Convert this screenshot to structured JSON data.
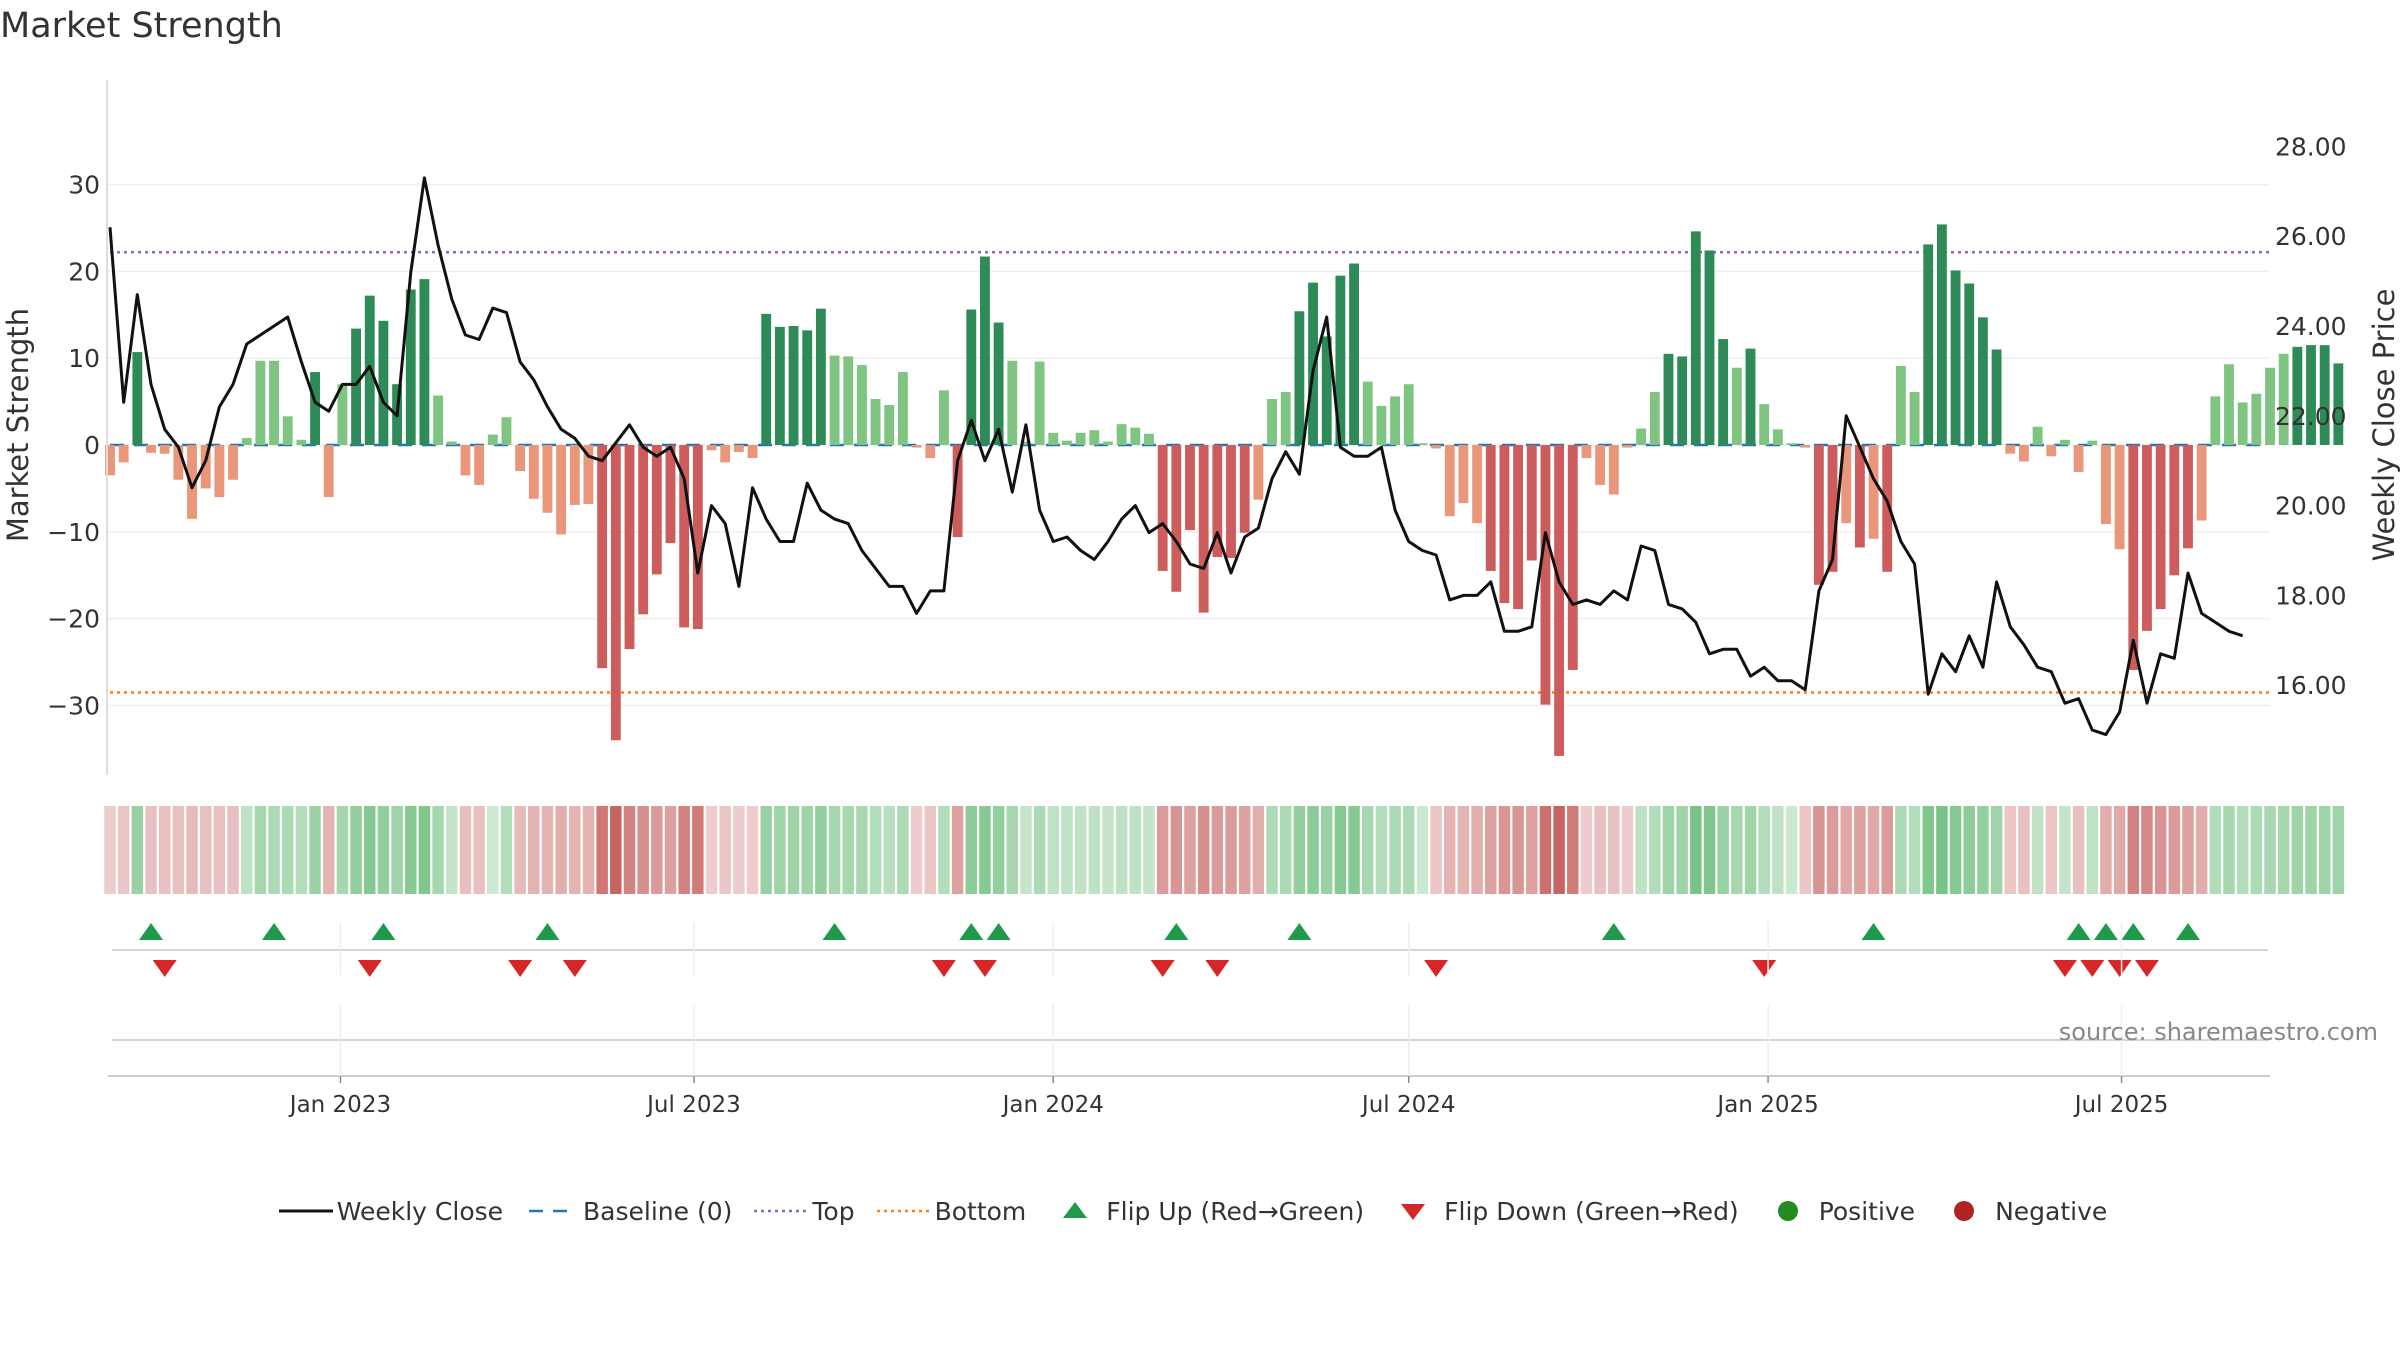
{
  "title": "Market Strength",
  "source": "source: sharemaestro.com",
  "colors": {
    "price_line": "#111111",
    "baseline": "#1f77b4",
    "top": "#9467bd",
    "bottom": "#ff7f0e",
    "pos_strong": "#2e8b57",
    "pos_light": "#7fc481",
    "neg_strong": "#cd5c5c",
    "neg_light": "#e9967a",
    "flip_up": "#1e9a4a",
    "flip_down": "#d62728",
    "positive_dot": "#228b22",
    "negative_dot": "#b22222"
  },
  "chart_data": {
    "type": "bar",
    "title": "Market Strength",
    "ylabel": "Market Strength",
    "y2label": "Weekly Close Price",
    "ylim": [
      -38,
      38
    ],
    "y2lim": [
      14.0,
      28.7
    ],
    "yticks": [
      30,
      20,
      10,
      0,
      -10,
      -20,
      -30
    ],
    "y2ticks": [
      "28.00",
      "26.00",
      "24.00",
      "22.00",
      "20.00",
      "18.00",
      "16.00"
    ],
    "top_level": 22.2,
    "bottom_level": -28.5,
    "baseline_level": 0,
    "xlim": [
      "2022-09-05",
      "2025-09-15"
    ],
    "xtick_dates": [
      "2023-01-01",
      "2023-07-01",
      "2024-01-01",
      "2024-07-01",
      "2025-01-01",
      "2025-07-01"
    ],
    "xticks": [
      "Jan 2023",
      "Jul 2023",
      "Jan 2024",
      "Jul 2024",
      "Jan 2025",
      "Jul 2025"
    ],
    "start_week": "2022-09-05",
    "strength": [
      -3.5,
      -2,
      10.7,
      -0.9,
      -1,
      -4,
      -8.5,
      -5,
      -6,
      -4,
      0.8,
      9.7,
      9.7,
      3.3,
      0.6,
      8.4,
      -6,
      7,
      13.4,
      17.2,
      14.3,
      7,
      17.9,
      19.1,
      5.7,
      0.4,
      -3.5,
      -4.6,
      1.2,
      3.2,
      -3,
      -6.2,
      -7.8,
      -10.3,
      -6.9,
      -6.8,
      -25.7,
      -34,
      -23.5,
      -19.5,
      -14.9,
      -11.3,
      -21,
      -21.2,
      -0.6,
      -2,
      -0.8,
      -1.5,
      15.1,
      13.6,
      13.7,
      13.2,
      15.7,
      10.3,
      10.2,
      9.2,
      5.3,
      4.6,
      8.4,
      -0.3,
      -1.5,
      6.3,
      -10.6,
      15.6,
      21.7,
      14.1,
      9.7,
      0.4,
      9.6,
      1.4,
      0.5,
      1.4,
      1.7,
      0.4,
      2.4,
      2,
      1.3,
      -14.5,
      -16.9,
      -9.8,
      -19.3,
      -12.9,
      -13,
      -10.1,
      -6.3,
      5.3,
      6.1,
      15.4,
      18.7,
      12.5,
      19.5,
      20.9,
      7.3,
      4.5,
      5.6,
      7,
      0.2,
      -0.4,
      -8.2,
      -6.7,
      -9,
      -14.5,
      -18.2,
      -18.9,
      -13.3,
      -29.9,
      -35.8,
      -25.9,
      -1.5,
      -4.6,
      -5.7,
      -0.3,
      1.9,
      6.1,
      10.5,
      10.2,
      24.6,
      22.4,
      12.2,
      8.9,
      11.1,
      4.7,
      1.8,
      0.2,
      -0.3,
      -16.1,
      -14.6,
      -9,
      -11.8,
      -10.8,
      -14.6,
      9.1,
      6.1,
      23.1,
      25.4,
      20.1,
      18.6,
      14.7,
      11,
      -1,
      -1.9,
      2.1,
      -1.3,
      0.6,
      -3.1,
      0.5,
      -9.1,
      -12,
      -25.9,
      -21.4,
      -18.9,
      -15,
      -11.9,
      -8.7,
      5.6,
      9.3,
      4.9,
      5.9,
      8.9,
      10.5,
      11.3,
      11.5,
      11.5,
      9.4
    ],
    "close": [
      26.2,
      22.3,
      24.7,
      22.7,
      21.7,
      21.3,
      20.4,
      21.0,
      22.2,
      22.7,
      23.6,
      23.8,
      24.0,
      24.2,
      23.2,
      22.3,
      22.1,
      22.7,
      22.7,
      23.1,
      22.3,
      22.0,
      25.2,
      27.3,
      25.8,
      24.6,
      23.8,
      23.7,
      24.4,
      24.3,
      23.2,
      22.8,
      22.2,
      21.7,
      21.5,
      21.1,
      21.0,
      21.4,
      21.8,
      21.3,
      21.1,
      21.3,
      20.6,
      18.5,
      20.0,
      19.6,
      18.2,
      20.4,
      19.7,
      19.2,
      19.2,
      20.5,
      19.9,
      19.7,
      19.6,
      19.0,
      18.6,
      18.2,
      18.2,
      17.6,
      18.1,
      18.1,
      21.0,
      21.9,
      21.0,
      21.7,
      20.3,
      21.8,
      19.9,
      19.2,
      19.3,
      19.0,
      18.8,
      19.2,
      19.7,
      20.0,
      19.4,
      19.6,
      19.2,
      18.7,
      18.6,
      19.4,
      18.5,
      19.3,
      19.5,
      20.6,
      21.2,
      20.7,
      23.0,
      24.2,
      21.3,
      21.1,
      21.1,
      21.3,
      19.9,
      19.2,
      19.0,
      18.9,
      17.9,
      18.0,
      18.0,
      18.3,
      17.2,
      17.2,
      17.3,
      19.4,
      18.3,
      17.8,
      17.9,
      17.8,
      18.1,
      17.9,
      19.1,
      19.0,
      17.8,
      17.7,
      17.4,
      16.7,
      16.8,
      16.8,
      16.2,
      16.4,
      16.1,
      16.1,
      15.9,
      18.1,
      18.8,
      22.0,
      21.3,
      20.6,
      20.1,
      19.2,
      18.7,
      15.8,
      16.7,
      16.3,
      17.1,
      16.4,
      18.3,
      17.3,
      16.9,
      16.4,
      16.3,
      15.6,
      15.7,
      15.0,
      14.9,
      15.4,
      17.0,
      15.6,
      16.7,
      16.6,
      18.5,
      17.6,
      17.4,
      17.2,
      17.1
    ],
    "intensity": [
      0.1,
      0.15,
      0.5,
      0.2,
      0.2,
      0.2,
      0.25,
      0.2,
      0.2,
      0.2,
      0.2,
      0.4,
      0.35,
      0.35,
      0.3,
      0.5,
      0.3,
      0.4,
      0.55,
      0.65,
      0.55,
      0.45,
      0.65,
      0.7,
      0.4,
      0.15,
      0.2,
      0.2,
      0.1,
      0.3,
      0.25,
      0.3,
      0.3,
      0.35,
      0.3,
      0.3,
      0.8,
      0.95,
      0.7,
      0.6,
      0.5,
      0.45,
      0.7,
      0.75,
      0.1,
      0.15,
      0.1,
      0.1,
      0.5,
      0.45,
      0.45,
      0.45,
      0.55,
      0.4,
      0.4,
      0.4,
      0.3,
      0.25,
      0.35,
      0.1,
      0.15,
      0.3,
      0.45,
      0.6,
      0.65,
      0.55,
      0.4,
      0.15,
      0.35,
      0.2,
      0.2,
      0.2,
      0.2,
      0.15,
      0.2,
      0.2,
      0.15,
      0.5,
      0.55,
      0.45,
      0.6,
      0.5,
      0.5,
      0.45,
      0.35,
      0.35,
      0.35,
      0.55,
      0.6,
      0.5,
      0.65,
      0.65,
      0.4,
      0.3,
      0.35,
      0.35,
      0.1,
      0.15,
      0.3,
      0.3,
      0.35,
      0.45,
      0.55,
      0.55,
      0.45,
      0.85,
      0.95,
      0.75,
      0.1,
      0.2,
      0.2,
      0.1,
      0.2,
      0.3,
      0.45,
      0.45,
      0.75,
      0.7,
      0.5,
      0.4,
      0.45,
      0.3,
      0.2,
      0.1,
      0.15,
      0.55,
      0.5,
      0.4,
      0.45,
      0.4,
      0.5,
      0.35,
      0.3,
      0.7,
      0.75,
      0.65,
      0.6,
      0.55,
      0.45,
      0.15,
      0.2,
      0.2,
      0.15,
      0.15,
      0.2,
      0.2,
      0.35,
      0.4,
      0.7,
      0.65,
      0.55,
      0.5,
      0.45,
      0.35,
      0.3,
      0.4,
      0.3,
      0.35,
      0.4,
      0.4,
      0.45,
      0.45,
      0.45,
      0.45
    ],
    "flip_up": [
      "2022-09-26",
      "2022-11-28",
      "2023-01-23",
      "2023-04-17",
      "2023-09-11",
      "2023-11-20",
      "2023-12-04",
      "2024-03-04",
      "2024-05-06",
      "2024-10-14",
      "2025-02-24",
      "2025-06-09",
      "2025-06-23",
      "2025-07-07",
      "2025-08-04"
    ],
    "flip_down": [
      "2022-10-03",
      "2023-01-16",
      "2023-04-03",
      "2023-05-01",
      "2023-11-06",
      "2023-11-27",
      "2024-02-26",
      "2024-03-25",
      "2024-07-15",
      "2024-12-30",
      "2025-06-02",
      "2025-06-16",
      "2025-06-30",
      "2025-07-14"
    ]
  },
  "legend": [
    {
      "key": "weekly_close",
      "label": "Weekly Close"
    },
    {
      "key": "baseline",
      "label": "Baseline (0)"
    },
    {
      "key": "top",
      "label": "Top"
    },
    {
      "key": "bottom",
      "label": "Bottom"
    },
    {
      "key": "flip_up",
      "label": "Flip Up (Red→Green)"
    },
    {
      "key": "flip_down",
      "label": "Flip Down (Green→Red)"
    },
    {
      "key": "positive",
      "label": "Positive"
    },
    {
      "key": "negative",
      "label": "Negative"
    }
  ]
}
